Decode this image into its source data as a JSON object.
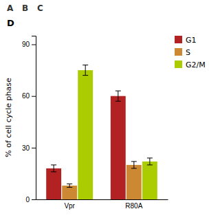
{
  "chart_data": {
    "type": "bar",
    "title": "D",
    "categories": [
      "Vpr",
      "R80A"
    ],
    "series": [
      {
        "name": "G1",
        "color": "#b22222",
        "values": [
          18,
          60
        ],
        "errors": [
          2,
          3
        ]
      },
      {
        "name": "S",
        "color": "#cc8833",
        "values": [
          8,
          20
        ],
        "errors": [
          1,
          2
        ]
      },
      {
        "name": "G2/M",
        "color": "#aacc00",
        "values": [
          75,
          22
        ],
        "errors": [
          3,
          2
        ]
      }
    ],
    "ylabel": "% of cell cycle phase",
    "ylim": [
      0,
      95
    ],
    "yticks": [
      0,
      30,
      60,
      90
    ],
    "legend": "upper right",
    "annotations": [
      "A",
      "B",
      "C"
    ]
  }
}
